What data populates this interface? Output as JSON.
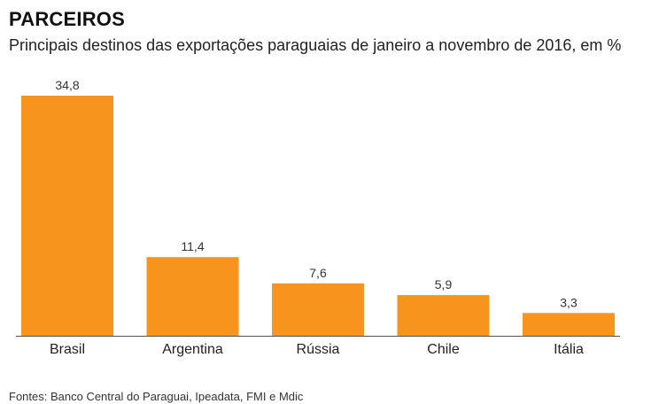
{
  "title": "PARCEIROS",
  "subtitle": "Principais destinos das exportações paraguaias de janeiro a novembro de 2016, em %",
  "source": "Fontes: Banco Central do Paraguai, Ipeadata, FMI e Mdic",
  "colors": {
    "bar": "#F7941D",
    "axis": "#555555"
  },
  "chart_data": {
    "type": "bar",
    "title": "PARCEIROS",
    "subtitle": "Principais destinos das exportações paraguaias de janeiro a novembro de 2016, em %",
    "categories": [
      "Brasil",
      "Argentina",
      "Rússia",
      "Chile",
      "Itália"
    ],
    "values": [
      34.8,
      11.4,
      7.6,
      5.9,
      3.3
    ],
    "value_labels": [
      "34,8",
      "11,4",
      "7,6",
      "5,9",
      "3,3"
    ],
    "ylim": [
      0,
      34.8
    ],
    "grid": false,
    "legend": "none"
  }
}
